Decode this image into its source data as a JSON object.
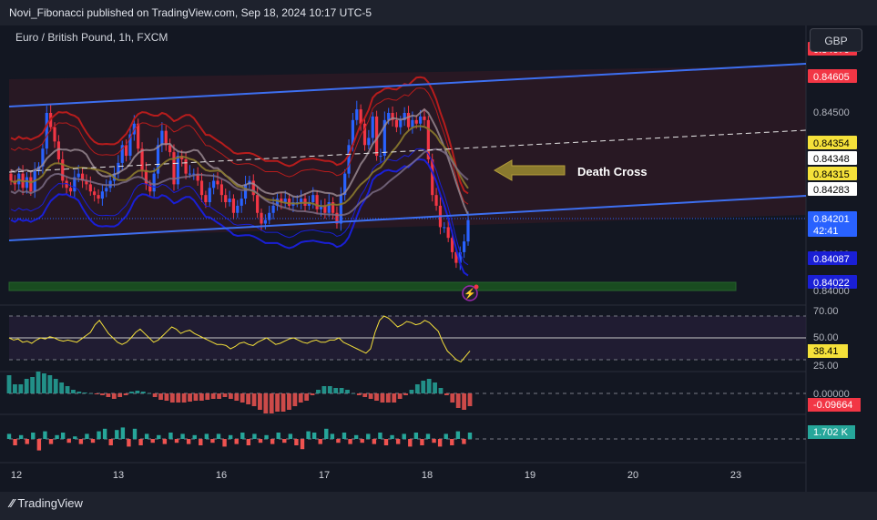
{
  "header": {
    "published": "Novi_Fibonacci published on TradingView.com, Sep 18, 2024 10:17 UTC-5"
  },
  "symbol": {
    "title": "Euro / British Pound, 1h, FXCM"
  },
  "currency_button": "GBP",
  "footer": {
    "brand": "TradingView"
  },
  "colors": {
    "background": "#131722",
    "up": "#2962ff",
    "down": "#f23645",
    "channel": "#3d6ff0",
    "rsi": "#f5e13a",
    "hist_up": "#26a69a",
    "hist_down": "#ef5350",
    "band_red": "#b71c1c",
    "band_blue": "#1a1fd6",
    "support_zone": "#1b5e20"
  },
  "chart_data": {
    "type": "candlestick",
    "symbol": "EURGBP",
    "timeframe": "1h",
    "x_ticks": [
      "12",
      "13",
      "16",
      "17",
      "18",
      "19",
      "20",
      "23"
    ],
    "y_ticks": [
      "0.84500",
      "0.84000"
    ],
    "ylim": [
      0.83985,
      0.8469
    ],
    "price_labels": [
      {
        "text": "0.84670",
        "kind": "band_upper"
      },
      {
        "text": "0.84605",
        "kind": "channel_upper"
      },
      {
        "text": "0.84354",
        "kind": "ma"
      },
      {
        "text": "0.84348",
        "kind": "dashed_mid"
      },
      {
        "text": "0.84315",
        "kind": "ma"
      },
      {
        "text": "0.84283",
        "kind": "ma"
      },
      {
        "text": "0.84201",
        "kind": "last_price",
        "countdown": "42:41"
      },
      {
        "text": "0.84100",
        "kind": "obscured"
      },
      {
        "text": "0.84087",
        "kind": "band_lower"
      },
      {
        "text": "0.84022",
        "kind": "support"
      },
      {
        "text": "0.84000",
        "kind": "tick"
      }
    ],
    "series": [
      {
        "name": "EURGBP",
        "close": [
          0.8431,
          0.843,
          0.8433,
          0.8429,
          0.8432,
          0.8428,
          0.8434,
          0.8435,
          0.844,
          0.845,
          0.8446,
          0.8442,
          0.8437,
          0.8431,
          0.8429,
          0.8428,
          0.8432,
          0.8433,
          0.8431,
          0.843,
          0.8428,
          0.8427,
          0.8426,
          0.8428,
          0.8429,
          0.8431,
          0.8433,
          0.8436,
          0.8441,
          0.8438,
          0.8444,
          0.8447,
          0.844,
          0.8434,
          0.843,
          0.8428,
          0.8433,
          0.8441,
          0.8445,
          0.8441,
          0.8439,
          0.843,
          0.8438,
          0.8437,
          0.8433,
          0.8433,
          0.8433,
          0.8431,
          0.8427,
          0.8425,
          0.8429,
          0.8431,
          0.843,
          0.8427,
          0.8425,
          0.8426,
          0.8422,
          0.8424,
          0.8426,
          0.843,
          0.8431,
          0.8427,
          0.8422,
          0.8419,
          0.842,
          0.8422,
          0.8424,
          0.8426,
          0.8425,
          0.8426,
          0.8424,
          0.8425,
          0.8425,
          0.8426,
          0.8424,
          0.8425,
          0.8427,
          0.8423,
          0.8424,
          0.8422,
          0.8425,
          0.8422,
          0.8419,
          0.8427,
          0.8433,
          0.8441,
          0.8448,
          0.8451,
          0.8447,
          0.8441,
          0.8443,
          0.8449,
          0.8438,
          0.8438,
          0.8448,
          0.845,
          0.8448,
          0.8446,
          0.8448,
          0.845,
          0.8446,
          0.8448,
          0.8447,
          0.8449,
          0.8448,
          0.8437,
          0.8427,
          0.8424,
          0.8418,
          0.8418,
          0.8415,
          0.8411,
          0.8408,
          0.8411,
          0.8414,
          0.842
        ]
      }
    ],
    "annotations": [
      {
        "text": "Death Cross",
        "kind": "arrow_left"
      }
    ],
    "rsi": {
      "ticks": [
        "70.00",
        "50.00",
        "25.00"
      ],
      "value_label": "38.41",
      "values": [
        50,
        48,
        49,
        46,
        47,
        45,
        48,
        50,
        49,
        51,
        50,
        48,
        47,
        48,
        47,
        46,
        49,
        52,
        55,
        62,
        66,
        60,
        54,
        50,
        46,
        44,
        46,
        50,
        55,
        58,
        54,
        50,
        46,
        48,
        52,
        56,
        60,
        58,
        54,
        56,
        57,
        54,
        52,
        50,
        48,
        46,
        44,
        44,
        43,
        40,
        42,
        45,
        46,
        44,
        43,
        46,
        48,
        50,
        47,
        44,
        45,
        47,
        49,
        50,
        48,
        46,
        45,
        47,
        48,
        46,
        46,
        48,
        48,
        50,
        46,
        44,
        42,
        40,
        38,
        36,
        40,
        55,
        66,
        70,
        68,
        64,
        60,
        62,
        65,
        64,
        62,
        63,
        66,
        64,
        60,
        56,
        46,
        38,
        34,
        30,
        28,
        33,
        38
      ]
    },
    "macd": {
      "ticks": [
        "0.00000"
      ],
      "value_label": "-0.09664",
      "values": [
        1,
        0.5,
        0.5,
        0.8,
        0.9,
        1.2,
        1.1,
        1.0,
        0.8,
        0.6,
        0.4,
        0.2,
        0.1,
        0.05,
        0,
        -0.05,
        -0.1,
        -0.2,
        -0.3,
        -0.2,
        -0.1,
        0.1,
        0.15,
        0.1,
        0,
        -0.2,
        -0.35,
        -0.4,
        -0.5,
        -0.5,
        -0.5,
        -0.45,
        -0.4,
        -0.4,
        -0.35,
        -0.3,
        -0.3,
        -0.2,
        -0.3,
        -0.4,
        -0.5,
        -0.6,
        -0.7,
        -0.9,
        -1.1,
        -1.1,
        -1.0,
        -1.0,
        -0.9,
        -0.7,
        -0.5,
        -0.4,
        -0.1,
        0.2,
        0.4,
        0.4,
        0.3,
        0.3,
        0.2,
        0.0,
        -0.1,
        -0.2,
        -0.3,
        -0.4,
        -0.5,
        -0.5,
        -0.5,
        -0.3,
        -0.1,
        0.2,
        0.5,
        0.7,
        0.8,
        0.6,
        0.3,
        -0.1,
        -0.5,
        -0.8,
        -0.9,
        -0.7
      ]
    },
    "volume": {
      "value_label": "1.702 K",
      "values": [
        0.4,
        -0.5,
        0.3,
        -0.4,
        0.5,
        -0.9,
        0.6,
        -0.4,
        0.3,
        0.5,
        -0.3,
        0.2,
        -0.4,
        0.4,
        -0.3,
        0.6,
        0.8,
        -0.5,
        0.7,
        0.9,
        -0.6,
        0.8,
        -0.5,
        0.4,
        -0.3,
        0.3,
        -0.4,
        0.5,
        -0.3,
        0.4,
        -0.4,
        0.3,
        -0.5,
        0.4,
        -0.3,
        0.4,
        -0.6,
        0.3,
        -0.4,
        0.5,
        -0.5,
        0.4,
        -0.3,
        0.3,
        -0.4,
        0.5,
        -0.3,
        0.4,
        -0.5,
        -0.8,
        0.6,
        0.5,
        -0.4,
        0.8,
        0.4,
        -0.3,
        0.5,
        -0.4,
        0.3,
        -0.3,
        0.4,
        -0.4,
        0.5,
        -0.5,
        0.3,
        -0.4,
        0.4,
        -0.6,
        0.5,
        -0.5,
        0.4,
        -0.3,
        -0.6,
        0.4,
        -0.5,
        0.6,
        -0.4,
        0.5
      ]
    }
  }
}
